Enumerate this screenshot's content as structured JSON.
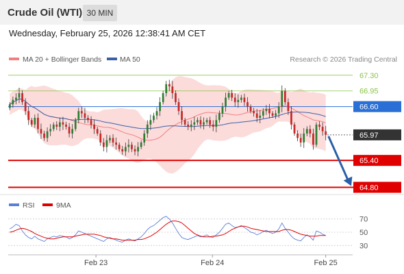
{
  "header": {
    "title": "Crude Oil (WTI)",
    "interval": "30 MIN"
  },
  "datetime": "Wednesday, February 25, 2026 12:38:41 AM CET",
  "legend": {
    "ma20_label": "MA 20 + Bollinger Bands",
    "ma50_label": "MA 50",
    "credit": "Research © 2026 Trading Central"
  },
  "colors": {
    "ma20": "#f08080",
    "bollinger_fill": "#fbd5d5",
    "ma50": "#3a5fa8",
    "resistance": "#8bc34a",
    "support": "#e00000",
    "pivot": "#2a6fd6",
    "current_price_tag": "#333333",
    "candle_up": "#2e7d32",
    "candle_down": "#c62828",
    "forecast_arrow": "#2a5fa8",
    "rsi": "#5b7fd6",
    "rsi_ma": "#e00000"
  },
  "chart_data": [
    {
      "type": "candlestick",
      "title": "Crude Oil (WTI)",
      "timeframe": "30 MIN",
      "ylim": [
        64.7,
        67.45
      ],
      "x_ticks": [
        "Feb 23",
        "Feb 24",
        "Feb 25"
      ],
      "levels": [
        {
          "label": "67.30",
          "value": 67.3,
          "kind": "resistance"
        },
        {
          "label": "66.95",
          "value": 66.95,
          "kind": "resistance"
        },
        {
          "label": "66.60",
          "value": 66.6,
          "kind": "pivot"
        },
        {
          "label": "65.97",
          "value": 65.97,
          "kind": "current"
        },
        {
          "label": "65.40",
          "value": 65.4,
          "kind": "support"
        },
        {
          "label": "64.80",
          "value": 64.8,
          "kind": "support"
        }
      ],
      "series": [
        {
          "name": "MA 20 + Bollinger Bands",
          "kind": "ma20"
        },
        {
          "name": "MA 50",
          "kind": "ma50"
        }
      ],
      "close": [
        66.65,
        66.75,
        66.8,
        66.9,
        66.7,
        66.5,
        66.3,
        66.2,
        66.35,
        66.1,
        66.0,
        65.9,
        66.05,
        66.1,
        66.2,
        66.15,
        66.25,
        66.2,
        66.15,
        66.0,
        66.1,
        66.3,
        66.5,
        66.45,
        66.35,
        66.3,
        66.2,
        66.1,
        66.0,
        65.8,
        65.7,
        65.85,
        65.9,
        65.8,
        65.75,
        65.65,
        65.6,
        65.7,
        65.75,
        65.65,
        65.6,
        65.7,
        65.8,
        66.0,
        66.2,
        66.3,
        66.4,
        66.5,
        66.7,
        66.9,
        67.1,
        67.05,
        66.9,
        66.7,
        66.5,
        66.3,
        66.2,
        66.15,
        66.2,
        66.25,
        66.3,
        66.2,
        66.25,
        66.3,
        66.2,
        66.15,
        66.3,
        66.45,
        66.6,
        66.8,
        66.9,
        66.8,
        66.7,
        66.75,
        66.8,
        66.7,
        66.6,
        66.5,
        66.45,
        66.35,
        66.4,
        66.5,
        66.55,
        66.45,
        66.4,
        66.45,
        66.6,
        66.95,
        66.7,
        66.5,
        66.2,
        66.0,
        65.9,
        65.8,
        66.0,
        66.1,
        66.0,
        65.75,
        66.2,
        66.15,
        66.05,
        65.97
      ],
      "rsi": {
        "label": "RSI",
        "ma_label": "9MA",
        "ylim": [
          20,
          80
        ],
        "ticks": [
          70,
          50,
          30
        ],
        "values": [
          55,
          58,
          62,
          60,
          52,
          46,
          42,
          40,
          44,
          40,
          38,
          36,
          40,
          42,
          44,
          43,
          45,
          44,
          43,
          40,
          42,
          46,
          52,
          50,
          48,
          46,
          44,
          42,
          40,
          38,
          36,
          40,
          42,
          40,
          38,
          36,
          35,
          38,
          40,
          38,
          37,
          40,
          43,
          48,
          54,
          58,
          60,
          64,
          68,
          72,
          74,
          70,
          64,
          56,
          48,
          42,
          40,
          39,
          41,
          43,
          45,
          43,
          44,
          46,
          43,
          42,
          46,
          50,
          56,
          62,
          64,
          60,
          57,
          58,
          60,
          57,
          54,
          50,
          49,
          46,
          48,
          51,
          53,
          50,
          48,
          50,
          55,
          64,
          56,
          50,
          44,
          40,
          38,
          37,
          42,
          46,
          43,
          38,
          52,
          50,
          47,
          45
        ],
        "ma_values": [
          50,
          51,
          53,
          55,
          56,
          55,
          53,
          51,
          48,
          46,
          44,
          42,
          41,
          40,
          40,
          41,
          42,
          43,
          43,
          43,
          43,
          44,
          45,
          46,
          47,
          47,
          47,
          47,
          46,
          45,
          43,
          42,
          41,
          40,
          40,
          39,
          38,
          38,
          38,
          38,
          38,
          39,
          39,
          40,
          42,
          44,
          47,
          50,
          54,
          58,
          62,
          65,
          67,
          67,
          66,
          64,
          60,
          56,
          52,
          48,
          46,
          44,
          43,
          43,
          43,
          44,
          44,
          45,
          46,
          48,
          51,
          54,
          56,
          58,
          59,
          59,
          58,
          56,
          55,
          54,
          53,
          52,
          51,
          51,
          51,
          51,
          51,
          53,
          54,
          54,
          53,
          51,
          49,
          47,
          46,
          45,
          44,
          44,
          44,
          45,
          45,
          45
        ]
      }
    }
  ]
}
